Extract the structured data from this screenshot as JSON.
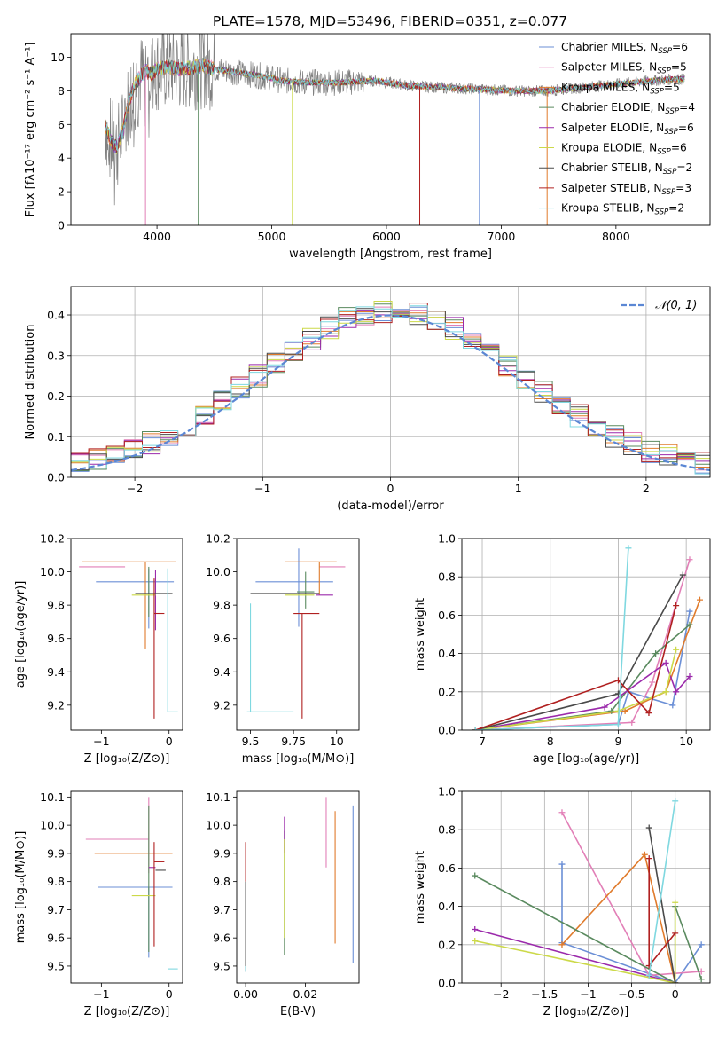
{
  "figure": {
    "title": "PLATE=1578, MJD=53496, FIBERID=0351, z=0.077"
  },
  "colors": {
    "data": "#808080",
    "palette": [
      "#6b8fd6",
      "#e27fb7",
      "#e07b2c",
      "#5a8a5f",
      "#9b2aab",
      "#ccd949",
      "#4a4a4a",
      "#b02020",
      "#7fd8e0"
    ]
  },
  "models": [
    {
      "label": "Chabrier MILES, N",
      "sub": "SSP",
      "n": "=6",
      "color": "#6b8fd6"
    },
    {
      "label": "Salpeter MILES, N",
      "sub": "SSP",
      "n": "=5",
      "color": "#e27fb7"
    },
    {
      "label": "Kroupa MILES, N",
      "sub": "SSP",
      "n": "=5",
      "color": "#e07b2c"
    },
    {
      "label": "Chabrier ELODIE, N",
      "sub": "SSP",
      "n": "=4",
      "color": "#5a8a5f"
    },
    {
      "label": "Salpeter ELODIE, N",
      "sub": "SSP",
      "n": "=6",
      "color": "#9b2aab"
    },
    {
      "label": "Kroupa ELODIE, N",
      "sub": "SSP",
      "n": "=6",
      "color": "#ccd949"
    },
    {
      "label": "Chabrier STELIB, N",
      "sub": "SSP",
      "n": "=2",
      "color": "#4a4a4a"
    },
    {
      "label": "Salpeter STELIB, N",
      "sub": "SSP",
      "n": "=3",
      "color": "#b02020"
    },
    {
      "label": "Kroupa STELIB, N",
      "sub": "SSP",
      "n": "=2",
      "color": "#7fd8e0"
    }
  ],
  "chart_data": [
    {
      "id": "spectrum",
      "type": "line",
      "xlabel": "wavelength [Angstrom, rest frame]",
      "ylabel": "Flux [fλ10⁻¹⁷ erg cm⁻² s⁻¹ A⁻¹]",
      "xlim": [
        3250,
        8820
      ],
      "ylim": [
        0,
        11.4
      ],
      "xticks": [
        4000,
        5000,
        6000,
        7000,
        8000
      ],
      "yticks": [
        0,
        2,
        4,
        6,
        8,
        10
      ],
      "grid": false,
      "legend": "right",
      "continuum": {
        "x": [
          3550,
          3600,
          3650,
          3700,
          3750,
          3800,
          3850,
          3900,
          3950,
          4000,
          4100,
          4200,
          4300,
          4400,
          4500,
          4700,
          4900,
          5100,
          5300,
          5600,
          5900,
          6200,
          6500,
          6800,
          7100,
          7400,
          7700,
          8000,
          8300,
          8500
        ],
        "y": [
          6.0,
          5.0,
          4.6,
          5.6,
          7.2,
          8.3,
          8.8,
          9.2,
          9.0,
          9.3,
          9.4,
          9.3,
          9.4,
          9.5,
          9.3,
          9.1,
          8.9,
          8.6,
          8.5,
          8.5,
          8.6,
          8.3,
          8.2,
          8.1,
          8.0,
          8.0,
          8.2,
          8.4,
          8.6,
          8.7
        ]
      },
      "absorption_lines": [
        {
          "x": 3900,
          "y": 0.0
        },
        {
          "x": 4360,
          "y": 0.0
        },
        {
          "x": 5180,
          "y": 0.0
        },
        {
          "x": 6290,
          "y": 0.0
        },
        {
          "x": 6810,
          "y": 0.0
        },
        {
          "x": 7400,
          "y": 0.0
        }
      ]
    },
    {
      "id": "residuals",
      "type": "line",
      "xlabel": "(data-model)/error",
      "ylabel": "Normed distribution",
      "xlim": [
        -2.5,
        2.5
      ],
      "ylim": [
        0,
        0.47
      ],
      "xticks": [
        -2,
        -1,
        0,
        1,
        2
      ],
      "yticks": [
        0.0,
        0.1,
        0.2,
        0.3,
        0.4
      ],
      "grid": true,
      "legend": "top-right",
      "gauss_label": "𝒩(0, 1)",
      "gauss": {
        "mu": 0,
        "sigma": 1
      }
    },
    {
      "id": "age-vs-Z",
      "type": "scatter",
      "xlabel": "Z [log₁₀(Z/Z⊙)]",
      "ylabel": "age  [log₁₀(age/yr)]",
      "xlim": [
        -1.45,
        0.2
      ],
      "ylim": [
        9.05,
        10.2
      ],
      "xticks": [
        -1,
        0
      ],
      "yticks": [
        9.2,
        9.4,
        9.6,
        9.8,
        10.0,
        10.2
      ],
      "points": [
        {
          "x": -0.6,
          "xerr": 0.7,
          "y": 9.94,
          "yerr": 0.0,
          "yerr_lo": 0.3,
          "yerr_hi": 0.08
        },
        {
          "x": -0.5,
          "xerr": 0.4,
          "y": 10.03,
          "yerr_lo": 0.0,
          "yerr_hi": 0.0
        },
        {
          "x": -0.3,
          "xerr": 0.9,
          "y": 10.06,
          "yerr_lo": 0.5,
          "yerr_hi": 0.0
        },
        {
          "x": -0.3,
          "xerr": 0.25,
          "y": 9.9,
          "yerr_lo": 0.27,
          "yerr_hi": 0.0
        },
        {
          "x": -0.25,
          "xerr": 0.25,
          "y": 9.88,
          "yerr_lo": 0.15,
          "yerr_hi": 0.0
        },
        {
          "x": -0.3,
          "xerr": 0.3,
          "y": 9.86,
          "yerr_lo": 0.0,
          "yerr_hi": 0.0
        },
        {
          "x": -0.2,
          "xerr": 0.3,
          "y": 9.87,
          "yerr_lo": 0.0,
          "yerr_hi": 0.0
        },
        {
          "x": -0.2,
          "xerr": 0.15,
          "y": 9.75,
          "yerr_lo": 0.65,
          "yerr_hi": 0.0
        },
        {
          "x": -0.02,
          "xerr": 0.15,
          "y": 9.16,
          "yerr_lo": 0.0,
          "yerr_hi": 0.78
        }
      ]
    },
    {
      "id": "age-vs-mass",
      "type": "scatter",
      "xlabel": "mass [log₁₀(M/M⊙)]",
      "ylabel": "",
      "xlim": [
        9.42,
        10.13
      ],
      "ylim": [
        9.05,
        10.2
      ],
      "xticks": [
        9.5,
        9.75,
        10.0
      ],
      "yticks": [
        9.2,
        9.4,
        9.6,
        9.8,
        10.0,
        10.2
      ]
    },
    {
      "id": "weight-vs-age",
      "type": "line",
      "xlabel": "age  [log₁₀(age/yr)]",
      "ylabel": "mass weight",
      "xlim": [
        6.7,
        10.35
      ],
      "ylim": [
        0,
        1.0
      ],
      "xticks": [
        7,
        8,
        9,
        10
      ],
      "yticks": [
        0.0,
        0.2,
        0.4,
        0.6,
        0.8,
        1.0
      ],
      "grid": true
    },
    {
      "id": "mass-vs-Z",
      "type": "scatter",
      "xlabel": "Z [log₁₀(Z/Z⊙)]",
      "ylabel": "mass [log₁₀(M/M⊙)]",
      "xlim": [
        -1.45,
        0.2
      ],
      "ylim": [
        9.44,
        10.12
      ],
      "xticks": [
        -1,
        0
      ],
      "yticks": [
        9.5,
        9.6,
        9.7,
        9.8,
        9.9,
        10.0,
        10.1
      ]
    },
    {
      "id": "mass-vs-EBV",
      "type": "scatter",
      "xlabel": "E(B-V)",
      "ylabel": "",
      "xlim": [
        -0.003,
        0.038
      ],
      "ylim": [
        9.44,
        10.12
      ],
      "xticks": [
        0.0,
        0.02
      ],
      "xtick_labels": [
        "0.00",
        "0.02"
      ],
      "yticks": [
        9.5,
        9.6,
        9.7,
        9.8,
        9.9,
        10.0,
        10.1
      ]
    },
    {
      "id": "weight-vs-Z",
      "type": "line",
      "xlabel": "Z [log₁₀(Z/Z⊙)]",
      "ylabel": "mass weight",
      "xlim": [
        -2.45,
        0.4
      ],
      "ylim": [
        0,
        1.0
      ],
      "xticks": [
        -2.0,
        -1.5,
        -1.0,
        -0.5,
        0.0
      ],
      "yticks": [
        0.0,
        0.2,
        0.4,
        0.6,
        0.8,
        1.0
      ],
      "grid": true
    }
  ]
}
